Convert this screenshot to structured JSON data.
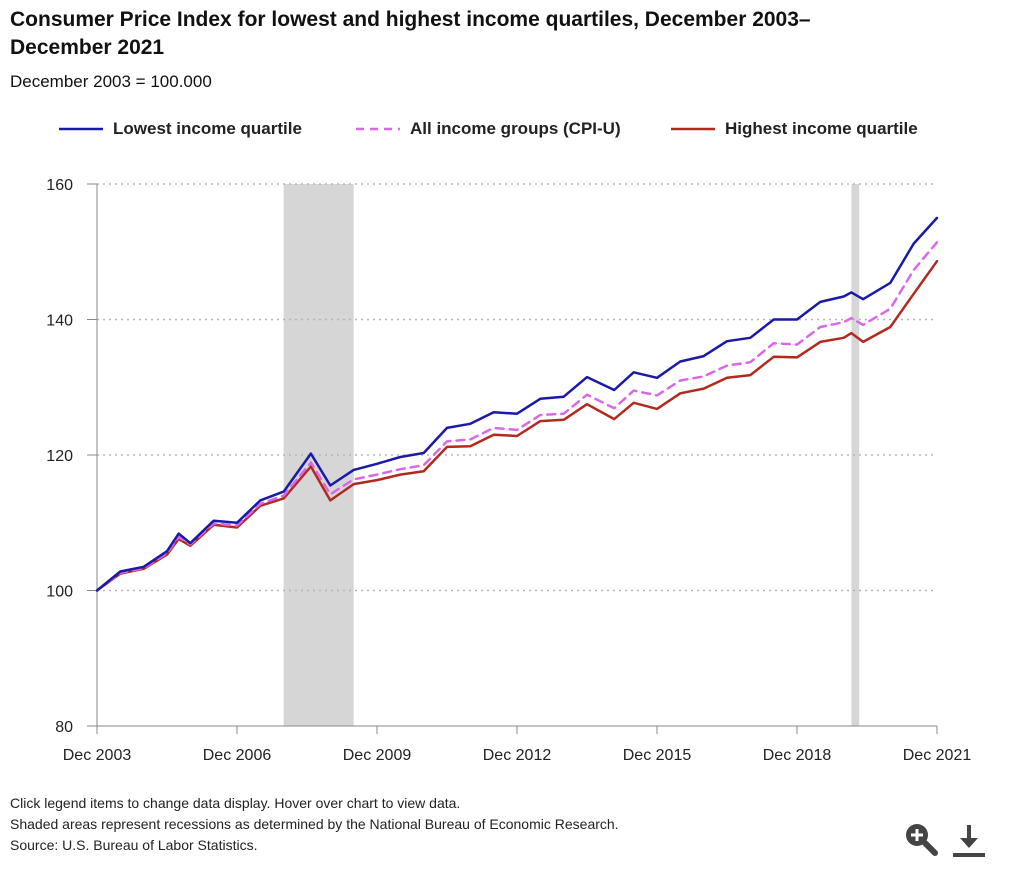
{
  "title": "Consumer Price Index for lowest and highest income quartiles, December 2003–December 2021",
  "subtitle": "December 2003 = 100.000",
  "legend": [
    {
      "label": "Lowest income quartile",
      "color": "#1a1aa8",
      "style": "solid"
    },
    {
      "label": "All income groups (CPI-U)",
      "color": "#d968e8",
      "style": "dashed"
    },
    {
      "label": "Highest income quartile",
      "color": "#b22a1e",
      "style": "solid"
    }
  ],
  "footer": {
    "line1": "Click legend items to change data display. Hover over chart to view data.",
    "line2": "Shaded areas represent recessions as determined by the National Bureau of Economic Research.",
    "line3": "Source: U.S. Bureau of Labor Statistics."
  },
  "icons": {
    "zoom": "zoom-in-icon",
    "download": "download-icon"
  },
  "chart_data": {
    "type": "line",
    "title": "Consumer Price Index for lowest and highest income quartiles, December 2003–December 2021",
    "subtitle": "December 2003 = 100.000",
    "xlabel": "",
    "ylabel": "",
    "x_ticks": [
      "Dec 2003",
      "Dec 2006",
      "Dec 2009",
      "Dec 2012",
      "Dec 2015",
      "Dec 2018",
      "Dec 2021"
    ],
    "y_ticks": [
      80,
      100,
      120,
      140,
      160
    ],
    "xlim": [
      "Dec 2003",
      "Dec 2021"
    ],
    "ylim": [
      80,
      160
    ],
    "grid": "horizontal dotted",
    "legend_position": "top",
    "recessions": [
      {
        "start": "Dec 2007",
        "end": "Jun 2009"
      },
      {
        "start": "Feb 2020",
        "end": "Apr 2020"
      }
    ],
    "series": [
      {
        "name": "Lowest income quartile",
        "color": "#1a1aa8",
        "points": [
          [
            "Dec 2003",
            100
          ],
          [
            "Jun 2004",
            102.8
          ],
          [
            "Dec 2004",
            103.5
          ],
          [
            "Jun 2005",
            105.8
          ],
          [
            "Sep 2005",
            108.4
          ],
          [
            "Dec 2005",
            107
          ],
          [
            "Jun 2006",
            110.3
          ],
          [
            "Dec 2006",
            110
          ],
          [
            "Jun 2007",
            113.3
          ],
          [
            "Dec 2007",
            114.6
          ],
          [
            "Jul 2008",
            120.2
          ],
          [
            "Dec 2008",
            115.5
          ],
          [
            "Jun 2009",
            117.8
          ],
          [
            "Dec 2009",
            118.7
          ],
          [
            "Jun 2010",
            119.7
          ],
          [
            "Dec 2010",
            120.3
          ],
          [
            "Jun 2011",
            124
          ],
          [
            "Dec 2011",
            124.6
          ],
          [
            "Jun 2012",
            126.3
          ],
          [
            "Dec 2012",
            126.1
          ],
          [
            "Jun 2013",
            128.3
          ],
          [
            "Dec 2013",
            128.6
          ],
          [
            "Jun 2014",
            131.5
          ],
          [
            "Jan 2015",
            129.6
          ],
          [
            "Jun 2015",
            132.2
          ],
          [
            "Dec 2015",
            131.4
          ],
          [
            "Jun 2016",
            133.8
          ],
          [
            "Dec 2016",
            134.6
          ],
          [
            "Jun 2017",
            136.8
          ],
          [
            "Dec 2017",
            137.3
          ],
          [
            "Jun 2018",
            140
          ],
          [
            "Dec 2018",
            140
          ],
          [
            "Jun 2019",
            142.6
          ],
          [
            "Dec 2019",
            143.4
          ],
          [
            "Feb 2020",
            144
          ],
          [
            "May 2020",
            143
          ],
          [
            "Dec 2020",
            145.4
          ],
          [
            "Jun 2021",
            151.2
          ],
          [
            "Dec 2021",
            155
          ]
        ]
      },
      {
        "name": "All income groups (CPI-U)",
        "color": "#d968e8",
        "points": [
          [
            "Dec 2003",
            100
          ],
          [
            "Jun 2004",
            102.6
          ],
          [
            "Dec 2004",
            103.3
          ],
          [
            "Jun 2005",
            105.5
          ],
          [
            "Sep 2005",
            107.9
          ],
          [
            "Dec 2005",
            106.8
          ],
          [
            "Jun 2006",
            109.9
          ],
          [
            "Dec 2006",
            109.6
          ],
          [
            "Jun 2007",
            112.8
          ],
          [
            "Dec 2007",
            114
          ],
          [
            "Jul 2008",
            118.9
          ],
          [
            "Dec 2008",
            114.2
          ],
          [
            "Jun 2009",
            116.4
          ],
          [
            "Dec 2009",
            117.1
          ],
          [
            "Jun 2010",
            117.9
          ],
          [
            "Dec 2010",
            118.5
          ],
          [
            "Jun 2011",
            122
          ],
          [
            "Dec 2011",
            122.3
          ],
          [
            "Jun 2012",
            124
          ],
          [
            "Dec 2012",
            123.7
          ],
          [
            "Jun 2013",
            125.9
          ],
          [
            "Dec 2013",
            126.1
          ],
          [
            "Jun 2014",
            128.9
          ],
          [
            "Jan 2015",
            126.9
          ],
          [
            "Jun 2015",
            129.5
          ],
          [
            "Dec 2015",
            128.8
          ],
          [
            "Jun 2016",
            131
          ],
          [
            "Dec 2016",
            131.6
          ],
          [
            "Jun 2017",
            133.2
          ],
          [
            "Dec 2017",
            133.7
          ],
          [
            "Jun 2018",
            136.5
          ],
          [
            "Dec 2018",
            136.3
          ],
          [
            "Jun 2019",
            138.9
          ],
          [
            "Dec 2019",
            139.6
          ],
          [
            "Feb 2020",
            140.2
          ],
          [
            "May 2020",
            139.2
          ],
          [
            "Dec 2020",
            141.6
          ],
          [
            "Jun 2021",
            147.3
          ],
          [
            "Dec 2021",
            151.4
          ]
        ]
      },
      {
        "name": "Highest income quartile",
        "color": "#b22a1e",
        "points": [
          [
            "Dec 2003",
            100
          ],
          [
            "Jun 2004",
            102.5
          ],
          [
            "Dec 2004",
            103.2
          ],
          [
            "Jun 2005",
            105.3
          ],
          [
            "Sep 2005",
            107.6
          ],
          [
            "Dec 2005",
            106.6
          ],
          [
            "Jun 2006",
            109.7
          ],
          [
            "Dec 2006",
            109.3
          ],
          [
            "Jun 2007",
            112.5
          ],
          [
            "Dec 2007",
            113.6
          ],
          [
            "Jul 2008",
            118.3
          ],
          [
            "Dec 2008",
            113.3
          ],
          [
            "Jun 2009",
            115.7
          ],
          [
            "Dec 2009",
            116.3
          ],
          [
            "Jun 2010",
            117.1
          ],
          [
            "Dec 2010",
            117.6
          ],
          [
            "Jun 2011",
            121.2
          ],
          [
            "Dec 2011",
            121.3
          ],
          [
            "Jun 2012",
            123
          ],
          [
            "Dec 2012",
            122.8
          ],
          [
            "Jun 2013",
            125
          ],
          [
            "Dec 2013",
            125.2
          ],
          [
            "Jun 2014",
            127.5
          ],
          [
            "Jan 2015",
            125.3
          ],
          [
            "Jun 2015",
            127.7
          ],
          [
            "Dec 2015",
            126.8
          ],
          [
            "Jun 2016",
            129.1
          ],
          [
            "Dec 2016",
            129.8
          ],
          [
            "Jun 2017",
            131.4
          ],
          [
            "Dec 2017",
            131.8
          ],
          [
            "Jun 2018",
            134.5
          ],
          [
            "Dec 2018",
            134.4
          ],
          [
            "Jun 2019",
            136.7
          ],
          [
            "Dec 2019",
            137.3
          ],
          [
            "Feb 2020",
            138
          ],
          [
            "May 2020",
            136.7
          ],
          [
            "Dec 2020",
            138.9
          ],
          [
            "Jun 2021",
            143.8
          ],
          [
            "Dec 2021",
            148.6
          ]
        ]
      }
    ]
  }
}
